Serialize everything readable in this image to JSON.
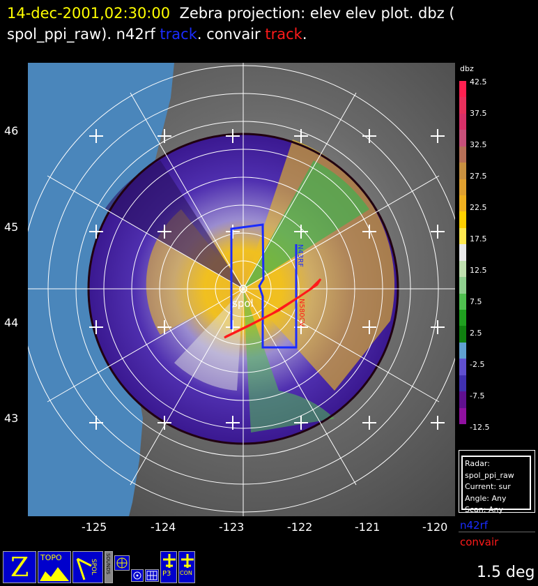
{
  "header": {
    "datetime": "14-dec-2001,02:30:00",
    "line1_rest": "Zebra projection: elev elev  plot.  dbz (",
    "line2_a": "spol_ppi_raw).   n42rf",
    "track1": "track",
    "line2_b": ".   convair",
    "track2": "track",
    "period": "."
  },
  "map": {
    "lat_labels": [
      "46",
      "45",
      "44",
      "43"
    ],
    "lon_labels": [
      "-125",
      "-124",
      "-123",
      "-122",
      "-121",
      "-120"
    ],
    "radar_label": "spol",
    "track_labels": [
      "N43RF",
      "N580CV"
    ],
    "colors": {
      "ocean": "#4a86bb",
      "n42rf": "#1a2cff",
      "convair": "#ff1a1a"
    }
  },
  "colorbar": {
    "unit": "dbz",
    "labels": [
      "42.5",
      "37.5",
      "32.5",
      "27.5",
      "22.5",
      "17.5",
      "12.5",
      "7.5",
      "2.5",
      "-2.5",
      "-7.5",
      "-12.5"
    ],
    "colors": [
      "#ff2050",
      "#e8305c",
      "#d83068",
      "#c8507a",
      "#b87058",
      "#c89040",
      "#e0a030",
      "#f0b020",
      "#ffd000",
      "#ffe850",
      "#e8e8e8",
      "#c0e0b0",
      "#90d090",
      "#50c050",
      "#20a020",
      "#108010",
      "#60a0d0",
      "#6050d0",
      "#4030b0",
      "#601090",
      "#9010a0"
    ]
  },
  "info": {
    "radar": "Radar: spol_ppi_raw",
    "current": "Current: sur",
    "angle": "Angle: Any",
    "scan": "Scan: Any"
  },
  "legend": {
    "n42rf": "n42rf",
    "convair": "convair"
  },
  "toolbar": {
    "zebra_icon": "Z",
    "topo": "TOPO",
    "spol_ppi": "SPOL",
    "sounds": "SOUNDS",
    "p3": "P3",
    "convair": "CON"
  },
  "status": {
    "elevation": "1.5 deg"
  }
}
